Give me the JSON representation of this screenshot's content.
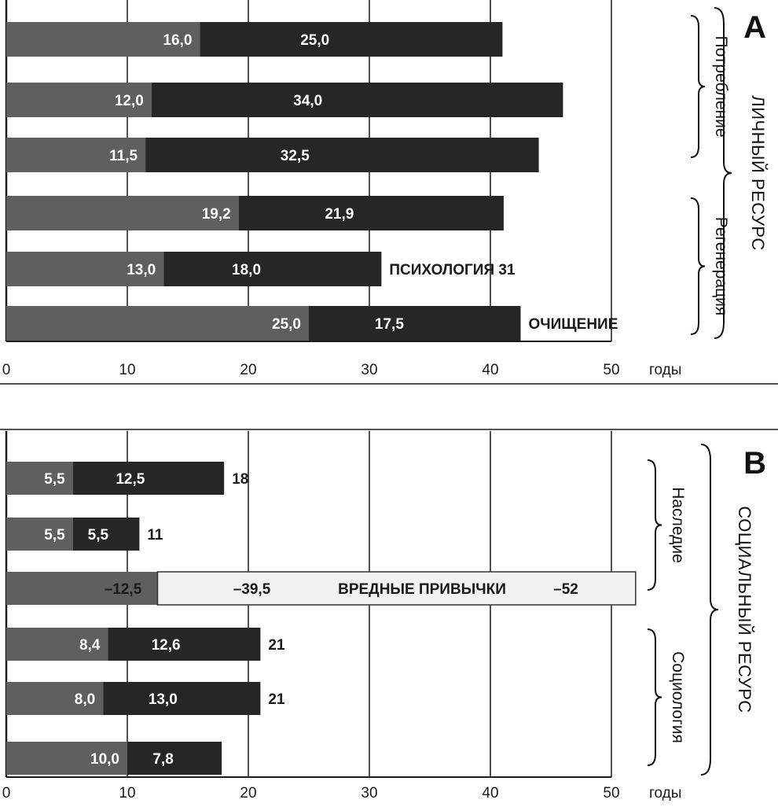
{
  "chart_data": [
    {
      "panel": "A",
      "type": "bar",
      "orientation": "horizontal",
      "stacked": true,
      "xlim": [
        0,
        50
      ],
      "xticks": [
        "0",
        "10",
        "20",
        "30",
        "40",
        "50"
      ],
      "xlabel": "годы",
      "section_label": "ЛИЧНЫЙ РЕСУРС",
      "groups": [
        {
          "label": "Потребление",
          "rows": [
            0,
            1,
            2
          ]
        },
        {
          "label": "Регенерация",
          "rows": [
            3,
            4,
            5
          ]
        }
      ],
      "rows": [
        {
          "label": "",
          "total": "",
          "segments": [
            {
              "value": 16.0,
              "text": "16,0"
            },
            {
              "value": 25.0,
              "text": "25,0"
            }
          ]
        },
        {
          "label": "",
          "total": "",
          "segments": [
            {
              "value": 12.0,
              "text": "12,0"
            },
            {
              "value": 34.0,
              "text": "34,0"
            }
          ]
        },
        {
          "label": "",
          "total": "",
          "segments": [
            {
              "value": 11.5,
              "text": "11,5"
            },
            {
              "value": 32.5,
              "text": "32,5"
            }
          ]
        },
        {
          "label": "",
          "total": "",
          "segments": [
            {
              "value": 19.2,
              "text": "19,2"
            },
            {
              "value": 21.9,
              "text": "21,9"
            }
          ]
        },
        {
          "label": "ПСИХОЛОГИЯ",
          "total": "31",
          "segments": [
            {
              "value": 13.0,
              "text": "13,0"
            },
            {
              "value": 18.0,
              "text": "18,0"
            }
          ]
        },
        {
          "label": "ОЧИЩЕНИЕ",
          "total": "",
          "segments": [
            {
              "value": 25.0,
              "text": "25,0"
            },
            {
              "value": 17.5,
              "text": "17,5"
            }
          ]
        }
      ]
    },
    {
      "panel": "B",
      "type": "bar",
      "orientation": "horizontal",
      "stacked": true,
      "xlim": [
        0,
        50
      ],
      "xticks": [
        "0",
        "10",
        "20",
        "30",
        "40",
        "50"
      ],
      "xlabel": "годы",
      "section_label": "СОЦИАЛЬНЫЙ РЕСУРС",
      "groups": [
        {
          "label": "Наследие",
          "rows": [
            0,
            1
          ]
        },
        {
          "label": "Социология",
          "rows": [
            3,
            4,
            5
          ]
        }
      ],
      "rows": [
        {
          "label": "",
          "total": "18",
          "segments": [
            {
              "value": 5.5,
              "text": "5,5"
            },
            {
              "value": 12.5,
              "text": "12,5"
            }
          ]
        },
        {
          "label": "",
          "total": "11",
          "segments": [
            {
              "value": 5.5,
              "text": "5,5"
            },
            {
              "value": 5.5,
              "text": "5,5"
            }
          ]
        },
        {
          "label": "ВРЕДНЫЕ ПРИВЫЧКИ",
          "total": "–52",
          "negative": true,
          "segments": [
            {
              "value": -12.5,
              "text": "–12,5"
            },
            {
              "value": -39.5,
              "text": "–39,5"
            }
          ]
        },
        {
          "label": "",
          "total": "21",
          "segments": [
            {
              "value": 8.4,
              "text": "8,4"
            },
            {
              "value": 12.6,
              "text": "12,6"
            }
          ]
        },
        {
          "label": "",
          "total": "21",
          "segments": [
            {
              "value": 8.0,
              "text": "8,0"
            },
            {
              "value": 13.0,
              "text": "13,0"
            }
          ]
        },
        {
          "label": "",
          "total": "",
          "segments": [
            {
              "value": 10.0,
              "text": "10,0"
            },
            {
              "value": 7.8,
              "text": "7,8"
            }
          ]
        }
      ]
    }
  ],
  "colors": {
    "segment1": "#5f5f5f",
    "segment2": "#262626",
    "negative_bar": "#f2f2f2",
    "grid": "#1a1a1a",
    "background": "#ffffff"
  }
}
